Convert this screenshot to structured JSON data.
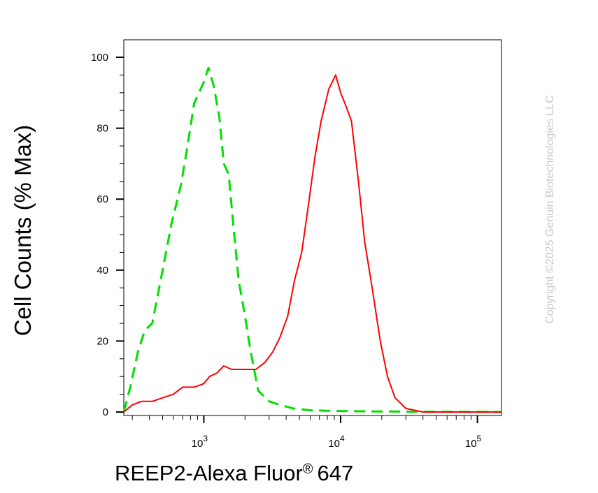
{
  "chart_data": {
    "type": "line",
    "title": "",
    "ylabel": "Cell Counts (% Max)",
    "xlabel": "REEP2-Alexa Fluor",
    "xlabel_sup": "®",
    "xlabel_suffix": "647",
    "x_scale": "log",
    "xlim": [
      260,
      150000
    ],
    "ylim": [
      0,
      105
    ],
    "yticks": [
      0,
      20,
      40,
      60,
      80,
      100
    ],
    "ytick_labels": [
      "0",
      "20",
      "40",
      "60",
      "80",
      "100"
    ],
    "xticks": [
      1000,
      10000,
      100000
    ],
    "xtick_labels": [
      {
        "base": "10",
        "exp": "3"
      },
      {
        "base": "10",
        "exp": "4"
      },
      {
        "base": "10",
        "exp": "5"
      }
    ],
    "grid": false,
    "series": [
      {
        "color": "#00e000",
        "style": "dashed",
        "points": [
          [
            260,
            0
          ],
          [
            290,
            7
          ],
          [
            330,
            17
          ],
          [
            370,
            23
          ],
          [
            420,
            25
          ],
          [
            500,
            40
          ],
          [
            580,
            53
          ],
          [
            680,
            64
          ],
          [
            760,
            75
          ],
          [
            850,
            87
          ],
          [
            1000,
            93
          ],
          [
            1080,
            97
          ],
          [
            1180,
            92
          ],
          [
            1300,
            83
          ],
          [
            1400,
            70
          ],
          [
            1520,
            67
          ],
          [
            1650,
            52
          ],
          [
            1800,
            37
          ],
          [
            2000,
            27
          ],
          [
            2200,
            17
          ],
          [
            2500,
            6
          ],
          [
            3000,
            3
          ],
          [
            3600,
            2
          ],
          [
            4500,
            1
          ],
          [
            6000,
            0.5
          ],
          [
            9000,
            0.3
          ],
          [
            15000,
            0.2
          ],
          [
            30000,
            0.1
          ],
          [
            150000,
            0
          ]
        ]
      },
      {
        "color": "#ff0000",
        "style": "solid",
        "points": [
          [
            260,
            0
          ],
          [
            300,
            2
          ],
          [
            350,
            3
          ],
          [
            420,
            3
          ],
          [
            500,
            4
          ],
          [
            600,
            5
          ],
          [
            700,
            7
          ],
          [
            850,
            7
          ],
          [
            1000,
            8
          ],
          [
            1100,
            10
          ],
          [
            1250,
            11
          ],
          [
            1400,
            13
          ],
          [
            1600,
            12
          ],
          [
            2000,
            12
          ],
          [
            2400,
            12
          ],
          [
            2800,
            14
          ],
          [
            3200,
            17
          ],
          [
            3600,
            21
          ],
          [
            4100,
            27
          ],
          [
            4600,
            37
          ],
          [
            5200,
            45
          ],
          [
            5800,
            58
          ],
          [
            6500,
            72
          ],
          [
            7200,
            82
          ],
          [
            8200,
            91
          ],
          [
            9200,
            95
          ],
          [
            10000,
            90
          ],
          [
            11000,
            86
          ],
          [
            12000,
            82
          ],
          [
            13500,
            65
          ],
          [
            15000,
            48
          ],
          [
            17000,
            35
          ],
          [
            19500,
            20
          ],
          [
            22000,
            10
          ],
          [
            25000,
            4
          ],
          [
            30000,
            1
          ],
          [
            40000,
            0
          ],
          [
            150000,
            0
          ]
        ]
      }
    ]
  },
  "watermark": "Copyright ©2025 Genuin Biotechnologies LLC"
}
